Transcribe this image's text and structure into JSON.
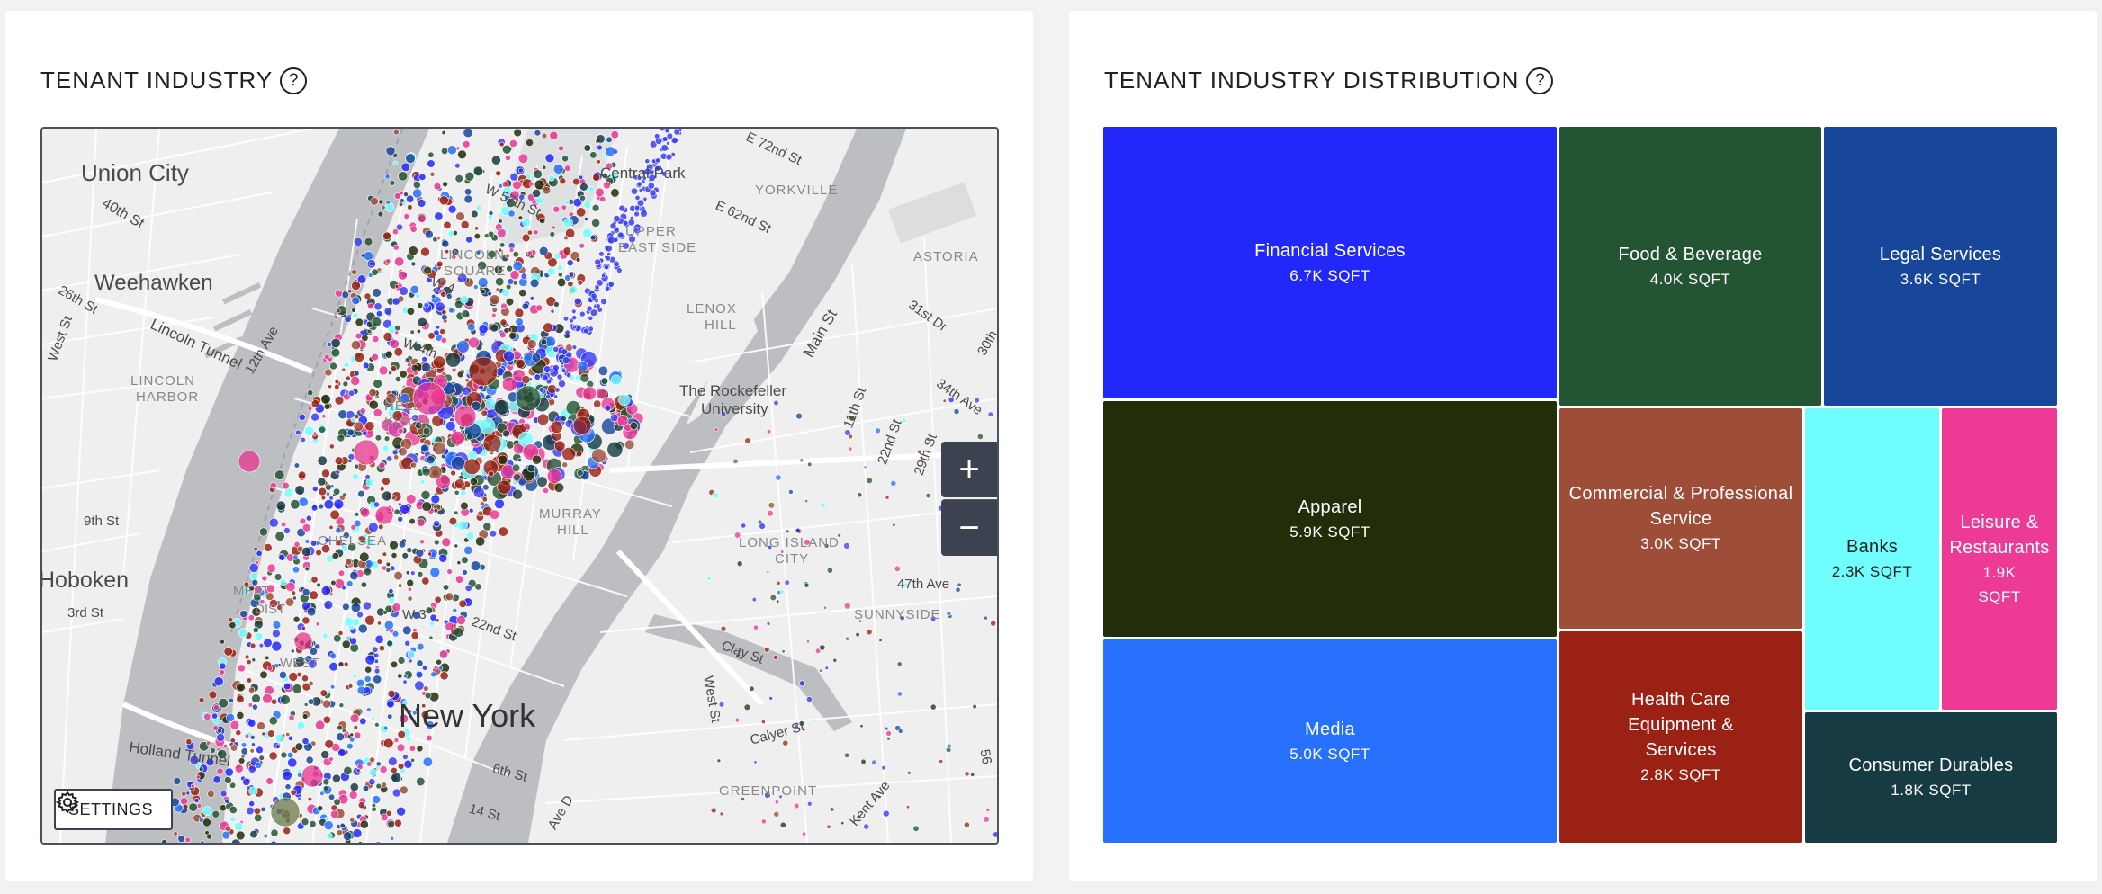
{
  "left_panel": {
    "title": "TENANT INDUSTRY",
    "help": "?",
    "map": {
      "labels": [
        "Union City",
        "40th St",
        "Weehawken",
        "26th St",
        "West St",
        "Lincoln Tunnel",
        "12th Ave",
        "LINCOLN",
        "HARBOR",
        "9th St",
        "Hoboken",
        "3rd St",
        "MEAT",
        "DIST",
        "WEST",
        "Holland Tunnel",
        "Central Park",
        "UPPER",
        "EAST SIDE",
        "YORKVILLE",
        "LENOX",
        "HILL",
        "ASTORIA",
        "31st Dr",
        "34th Ave",
        "30th",
        "The Rockefeller",
        "University",
        "Main St",
        "11th St",
        "22nd St",
        "29th St",
        "LONG ISLAND",
        "CITY",
        "47th Ave",
        "SUNNYSIDE",
        "Clay St",
        "West St",
        "Calyer St",
        "GREENPOINT",
        "Ave D",
        "New York",
        "HELL",
        "KITCH",
        "LINCOLN",
        "SQUARE",
        "MURRAY",
        "HILL",
        "CHELSEA",
        "6th St",
        "14 St",
        "22nd St",
        "W 4",
        "W 4th",
        "W 57th St",
        "E 62nd St",
        "E 72nd St",
        "56",
        "W 3",
        "Kent Ave"
      ],
      "zoom_in": "+",
      "zoom_out": "−",
      "settings_label": "SETTINGS"
    }
  },
  "right_panel": {
    "title": "TENANT INDUSTRY DISTRIBUTION",
    "help": "?",
    "tiles": [
      {
        "name": "Financial Services",
        "value": "6.7K SQFT",
        "color": "#2228fa"
      },
      {
        "name": "Food & Beverage",
        "value": "4.0K SQFT",
        "color": "#235433"
      },
      {
        "name": "Legal Services",
        "value": "3.6K SQFT",
        "color": "#17469a"
      },
      {
        "name": "Apparel",
        "value": "5.9K SQFT",
        "color": "#212e09"
      },
      {
        "name": "Commercial & Professional Service",
        "value": "3.0K SQFT",
        "color": "#9e4d39"
      },
      {
        "name": "Banks",
        "value": "2.3K SQFT",
        "color": "#70fdfd"
      },
      {
        "name": "Leisure & Restaurants",
        "value": "1.9K SQFT",
        "color": "#ec3a95"
      },
      {
        "name": "Media",
        "value": "5.0K SQFT",
        "color": "#2670fb"
      },
      {
        "name": "Health Care Equipment & Services",
        "value": "2.8K SQFT",
        "color": "#9a2113"
      },
      {
        "name": "Consumer Durables",
        "value": "1.8K SQFT",
        "color": "#173b42"
      }
    ]
  },
  "colors": {
    "water": "#b9bbbf",
    "land": "#efeff0",
    "park": "#e2e3e5",
    "panel_dark": "#3c4250"
  }
}
